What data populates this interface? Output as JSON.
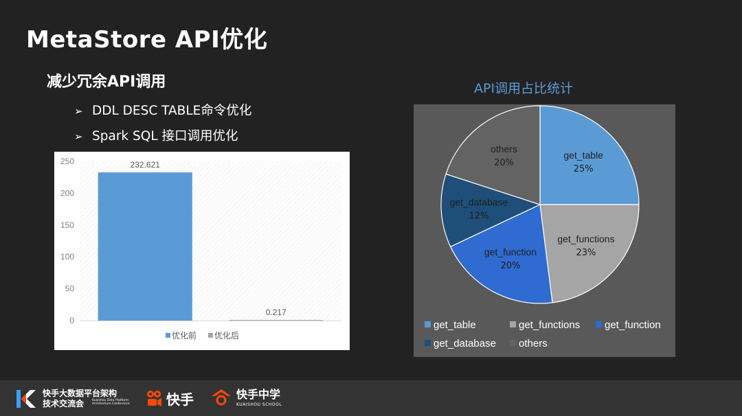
{
  "slide": {
    "title": "MetaStore API优化",
    "subtitle": "减少冗余API调用",
    "bullets": [
      "DDL DESC TABLE命令优化",
      "Spark SQL 接口调用优化"
    ]
  },
  "chart_data": [
    {
      "type": "bar",
      "categories": [
        "优化前",
        "优化后"
      ],
      "values": [
        232.621,
        0.217
      ],
      "data_labels": [
        "232.621",
        "0.217"
      ],
      "ylim": [
        0,
        250
      ],
      "yticks": [
        "0",
        "50",
        "100",
        "150",
        "200",
        "250"
      ],
      "legend": [
        "优化前",
        "优化后"
      ],
      "legend_position": "bottom",
      "colors": [
        "#5b9bd5",
        "#a5a5a5"
      ]
    },
    {
      "type": "pie",
      "title": "API调用占比统计",
      "slices": [
        {
          "label": "get_table",
          "value": 25,
          "pct_label": "25%",
          "color": "#5b9bd5"
        },
        {
          "label": "get_functions",
          "value": 23,
          "pct_label": "23%",
          "color": "#a5a5a5"
        },
        {
          "label": "get_function",
          "value": 20,
          "pct_label": "20%",
          "color": "#2f6bd1"
        },
        {
          "label": "get_database",
          "value": 12,
          "pct_label": "12%",
          "color": "#1f4e79"
        },
        {
          "label": "others",
          "value": 20,
          "pct_label": "20%",
          "color": "#636363"
        }
      ],
      "legend_position": "bottom"
    }
  ],
  "footer": {
    "conference_line1": "快手大数据平台架构",
    "conference_line2": "技术交流会",
    "conference_en": "Kuaishou Data Platform Architecture Conference",
    "brand": "快手",
    "school_name": "快手中学",
    "school_en": "KUAISHOU SCHOOL"
  }
}
